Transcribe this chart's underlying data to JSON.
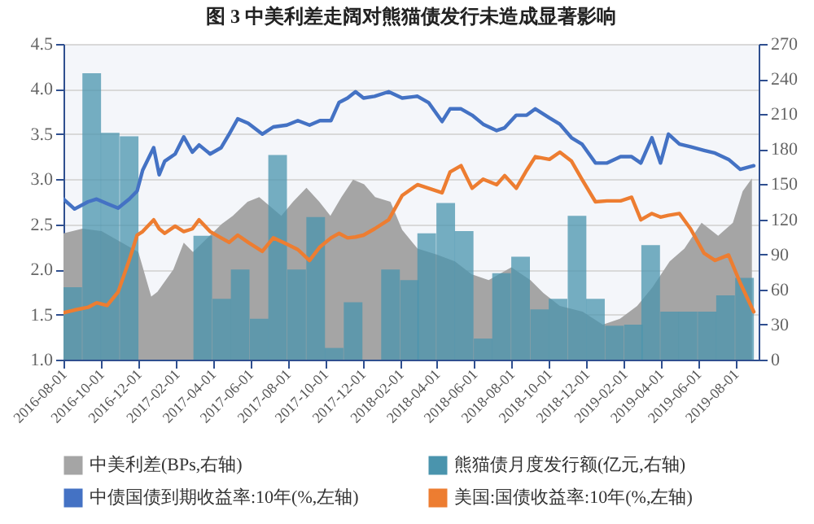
{
  "chart_data": {
    "type": "line",
    "title": "图 3 中美利差走阔对熊猫债发行未造成显著影响",
    "xlim": [
      "2016-08-01",
      "2019-09-08"
    ],
    "xticks": [
      "2016-08-01",
      "2016-10-01",
      "2016-12-01",
      "2017-02-01",
      "2017-04-01",
      "2017-06-01",
      "2017-08-01",
      "2017-10-01",
      "2017-12-01",
      "2018-02-01",
      "2018-04-01",
      "2018-06-01",
      "2018-08-01",
      "2018-10-01",
      "2018-12-01",
      "2019-02-01",
      "2019-04-01",
      "2019-06-01",
      "2019-08-01"
    ],
    "ylim": [
      1,
      4.5
    ],
    "yticks": [
      {
        "value": 1,
        "label": "1.0"
      },
      1.5,
      {
        "value": 2,
        "label": "2.0"
      },
      2.5,
      {
        "value": 3,
        "label": "3.0"
      },
      3.5,
      {
        "value": 4,
        "label": "4.0"
      },
      4.5
    ],
    "y2lim": [
      0,
      270
    ],
    "y2ticks": [
      0,
      30,
      60,
      90,
      120,
      150,
      180,
      210,
      240,
      270
    ],
    "grid": "y",
    "legend": "bottom",
    "series": [
      {
        "name": "中美利差(BPs,右轴)",
        "type": "area",
        "axis": "y2",
        "color": "#a5a5a5",
        "x": [
          "2016-08-01",
          "2016-09-01",
          "2016-10-02",
          "2016-12-01",
          "2016-12-22",
          "2017-01-01",
          "2017-01-27",
          "2017-02-13",
          "2017-02-28",
          "2017-04-16",
          "2017-05-04",
          "2017-05-28",
          "2017-06-16",
          "2017-07-04",
          "2017-07-22",
          "2017-08-10",
          "2017-09-01",
          "2017-09-22",
          "2017-10-10",
          "2017-10-28",
          "2017-11-16",
          "2017-12-04",
          "2017-12-22",
          "2018-01-16",
          "2018-02-04",
          "2018-03-01",
          "2018-04-01",
          "2018-05-01",
          "2018-05-28",
          "2018-06-25",
          "2018-08-01",
          "2018-09-01",
          "2018-09-22",
          "2018-10-19",
          "2018-11-25",
          "2018-12-28",
          "2019-01-25",
          "2019-02-22",
          "2019-03-19",
          "2019-04-16",
          "2019-05-10",
          "2019-06-07",
          "2019-07-04",
          "2019-07-28",
          "2019-08-13",
          "2019-08-28"
        ],
        "values": [
          108,
          112,
          110,
          92,
          54,
          58,
          77,
          100,
          92,
          116,
          123,
          135,
          139,
          131,
          123,
          135,
          147,
          135,
          123,
          139,
          154,
          150,
          139,
          135,
          111,
          95,
          90,
          84,
          73,
          68,
          79,
          68,
          57,
          46,
          41,
          30,
          35,
          46,
          62,
          84,
          95,
          117,
          106,
          117,
          144,
          155
        ]
      },
      {
        "name": "熊猫债月度发行额(亿元,右轴)",
        "type": "bar",
        "axis": "y2",
        "color": "#4a94ad",
        "x": [
          "2016-08-16",
          "2016-09-16",
          "2016-10-16",
          "2016-11-16",
          "2016-12-16",
          "2017-01-16",
          "2017-02-16",
          "2017-03-16",
          "2017-04-16",
          "2017-05-16",
          "2017-06-16",
          "2017-07-16",
          "2017-08-16",
          "2017-09-16",
          "2017-10-16",
          "2017-11-16",
          "2017-12-16",
          "2018-01-16",
          "2018-02-16",
          "2018-03-16",
          "2018-04-16",
          "2018-05-16",
          "2018-06-16",
          "2018-07-16",
          "2018-08-16",
          "2018-09-16",
          "2018-10-16",
          "2018-11-16",
          "2018-12-16",
          "2019-01-16",
          "2019-02-16",
          "2019-03-16",
          "2019-04-16",
          "2019-05-16",
          "2019-06-16",
          "2019-07-16",
          "2019-08-16"
        ],
        "values": [
          62,
          245,
          194,
          191,
          0,
          0,
          0,
          106,
          52,
          77,
          35,
          175,
          77,
          122,
          10,
          49,
          0,
          77,
          68,
          108,
          134,
          110,
          18,
          74,
          88,
          43,
          52,
          123,
          52,
          29,
          30,
          98,
          41,
          41,
          41,
          55,
          70
        ]
      },
      {
        "name": "中债国债到期收益率:10年(%,左轴)",
        "color": "#4472c4",
        "x": [
          "2016-08-01",
          "2016-08-19",
          "2016-09-10",
          "2016-09-24",
          "2016-10-11",
          "2016-10-29",
          "2016-11-16",
          "2016-11-29",
          "2016-12-08",
          "2016-12-26",
          "2017-01-04",
          "2017-01-13",
          "2017-01-30",
          "2017-02-13",
          "2017-02-27",
          "2017-03-10",
          "2017-03-28",
          "2017-04-15",
          "2017-04-28",
          "2017-05-12",
          "2017-05-29",
          "2017-06-21",
          "2017-07-09",
          "2017-07-31",
          "2017-08-18",
          "2017-09-06",
          "2017-09-23",
          "2017-10-11",
          "2017-10-24",
          "2017-11-07",
          "2017-11-20",
          "2017-12-03",
          "2017-12-21",
          "2018-01-13",
          "2018-02-04",
          "2018-03-01",
          "2018-03-19",
          "2018-04-10",
          "2018-04-23",
          "2018-05-11",
          "2018-05-29",
          "2018-06-16",
          "2018-07-08",
          "2018-07-21",
          "2018-08-09",
          "2018-08-26",
          "2018-09-09",
          "2018-10-02",
          "2018-10-19",
          "2018-11-07",
          "2018-11-24",
          "2018-12-16",
          "2019-01-04",
          "2019-01-26",
          "2019-02-13",
          "2019-02-28",
          "2019-03-18",
          "2019-04-01",
          "2019-04-14",
          "2019-05-02",
          "2019-05-20",
          "2019-06-11",
          "2019-06-29",
          "2019-07-21",
          "2019-08-09",
          "2019-08-31"
        ],
        "values": [
          2.78,
          2.67,
          2.75,
          2.78,
          2.73,
          2.68,
          2.78,
          2.87,
          3.1,
          3.35,
          3.05,
          3.2,
          3.28,
          3.47,
          3.3,
          3.38,
          3.28,
          3.35,
          3.5,
          3.67,
          3.62,
          3.5,
          3.58,
          3.6,
          3.65,
          3.6,
          3.65,
          3.65,
          3.85,
          3.9,
          3.97,
          3.9,
          3.92,
          3.97,
          3.9,
          3.92,
          3.85,
          3.64,
          3.78,
          3.78,
          3.71,
          3.61,
          3.54,
          3.57,
          3.71,
          3.71,
          3.78,
          3.68,
          3.61,
          3.46,
          3.39,
          3.18,
          3.18,
          3.25,
          3.25,
          3.18,
          3.46,
          3.18,
          3.5,
          3.39,
          3.36,
          3.32,
          3.29,
          3.22,
          3.11,
          3.15
        ]
      },
      {
        "name": "美国:国债收益率:10年(%,左轴)",
        "color": "#ed7d31",
        "x": [
          "2016-08-01",
          "2016-08-19",
          "2016-09-10",
          "2016-09-24",
          "2016-10-11",
          "2016-10-29",
          "2016-11-16",
          "2016-11-29",
          "2016-12-08",
          "2016-12-26",
          "2017-01-04",
          "2017-01-13",
          "2017-01-30",
          "2017-02-13",
          "2017-02-27",
          "2017-03-10",
          "2017-03-28",
          "2017-04-15",
          "2017-04-28",
          "2017-05-12",
          "2017-05-29",
          "2017-06-21",
          "2017-07-09",
          "2017-07-31",
          "2017-08-18",
          "2017-09-06",
          "2017-09-23",
          "2017-10-11",
          "2017-10-24",
          "2017-11-07",
          "2017-11-20",
          "2017-12-03",
          "2017-12-21",
          "2018-01-13",
          "2018-02-04",
          "2018-03-01",
          "2018-03-19",
          "2018-04-10",
          "2018-04-23",
          "2018-05-11",
          "2018-05-29",
          "2018-06-16",
          "2018-07-08",
          "2018-07-21",
          "2018-08-09",
          "2018-08-26",
          "2018-09-09",
          "2018-10-02",
          "2018-10-19",
          "2018-11-07",
          "2018-11-24",
          "2018-12-16",
          "2019-01-04",
          "2019-01-26",
          "2019-02-13",
          "2019-02-28",
          "2019-03-18",
          "2019-04-01",
          "2019-04-14",
          "2019-05-02",
          "2019-05-20",
          "2019-06-11",
          "2019-06-29",
          "2019-07-21",
          "2019-08-09",
          "2019-08-31"
        ],
        "values": [
          1.52,
          1.55,
          1.58,
          1.63,
          1.6,
          1.75,
          2.1,
          2.38,
          2.42,
          2.55,
          2.45,
          2.4,
          2.48,
          2.42,
          2.45,
          2.55,
          2.42,
          2.35,
          2.3,
          2.38,
          2.3,
          2.2,
          2.35,
          2.28,
          2.22,
          2.1,
          2.25,
          2.35,
          2.4,
          2.35,
          2.36,
          2.38,
          2.45,
          2.55,
          2.82,
          2.94,
          2.9,
          2.85,
          3.08,
          3.15,
          2.9,
          3.0,
          2.94,
          3.04,
          2.9,
          3.1,
          3.25,
          3.22,
          3.3,
          3.2,
          3.0,
          2.75,
          2.76,
          2.76,
          2.8,
          2.55,
          2.62,
          2.58,
          2.6,
          2.62,
          2.45,
          2.18,
          2.1,
          2.16,
          1.85,
          1.53
        ]
      }
    ]
  }
}
